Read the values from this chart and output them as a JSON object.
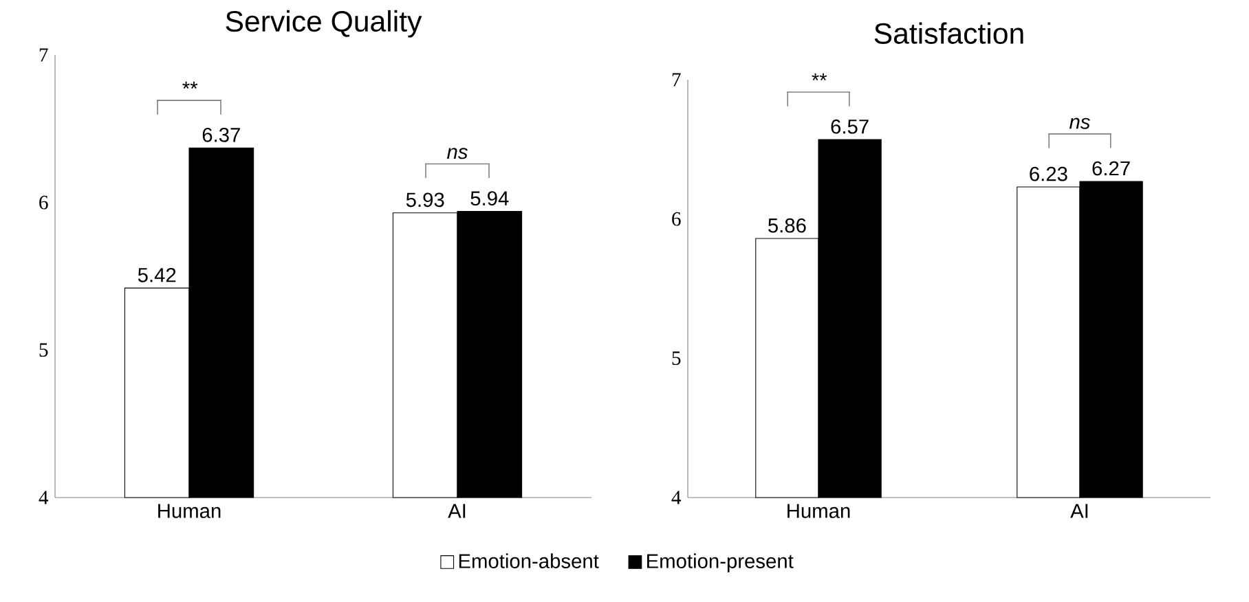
{
  "chart_data": [
    {
      "type": "bar",
      "title": "Service Quality",
      "categories": [
        "Human",
        "AI"
      ],
      "series": [
        {
          "name": "Emotion-absent",
          "color": "#ffffff",
          "values": [
            5.42,
            5.93
          ]
        },
        {
          "name": "Emotion-present",
          "color": "#000000",
          "values": [
            6.37,
            5.94
          ]
        }
      ],
      "ylim": [
        4,
        7
      ],
      "yticks": [
        4,
        5,
        6,
        7
      ],
      "data_labels": true,
      "legend": "bottom",
      "grid": false,
      "annotations": [
        "**",
        "ns"
      ]
    },
    {
      "type": "bar",
      "title": "Satisfaction",
      "categories": [
        "Human",
        "AI"
      ],
      "series": [
        {
          "color": "#ffffff",
          "values": [
            5.86,
            6.23
          ]
        },
        {
          "color": "#000000",
          "values": [
            6.57,
            6.27
          ]
        }
      ],
      "ylim": [
        4,
        7
      ],
      "yticks": [
        4,
        5,
        6,
        7
      ],
      "data_labels": true,
      "grid": false,
      "annotations": [
        "**",
        "ns"
      ]
    }
  ]
}
